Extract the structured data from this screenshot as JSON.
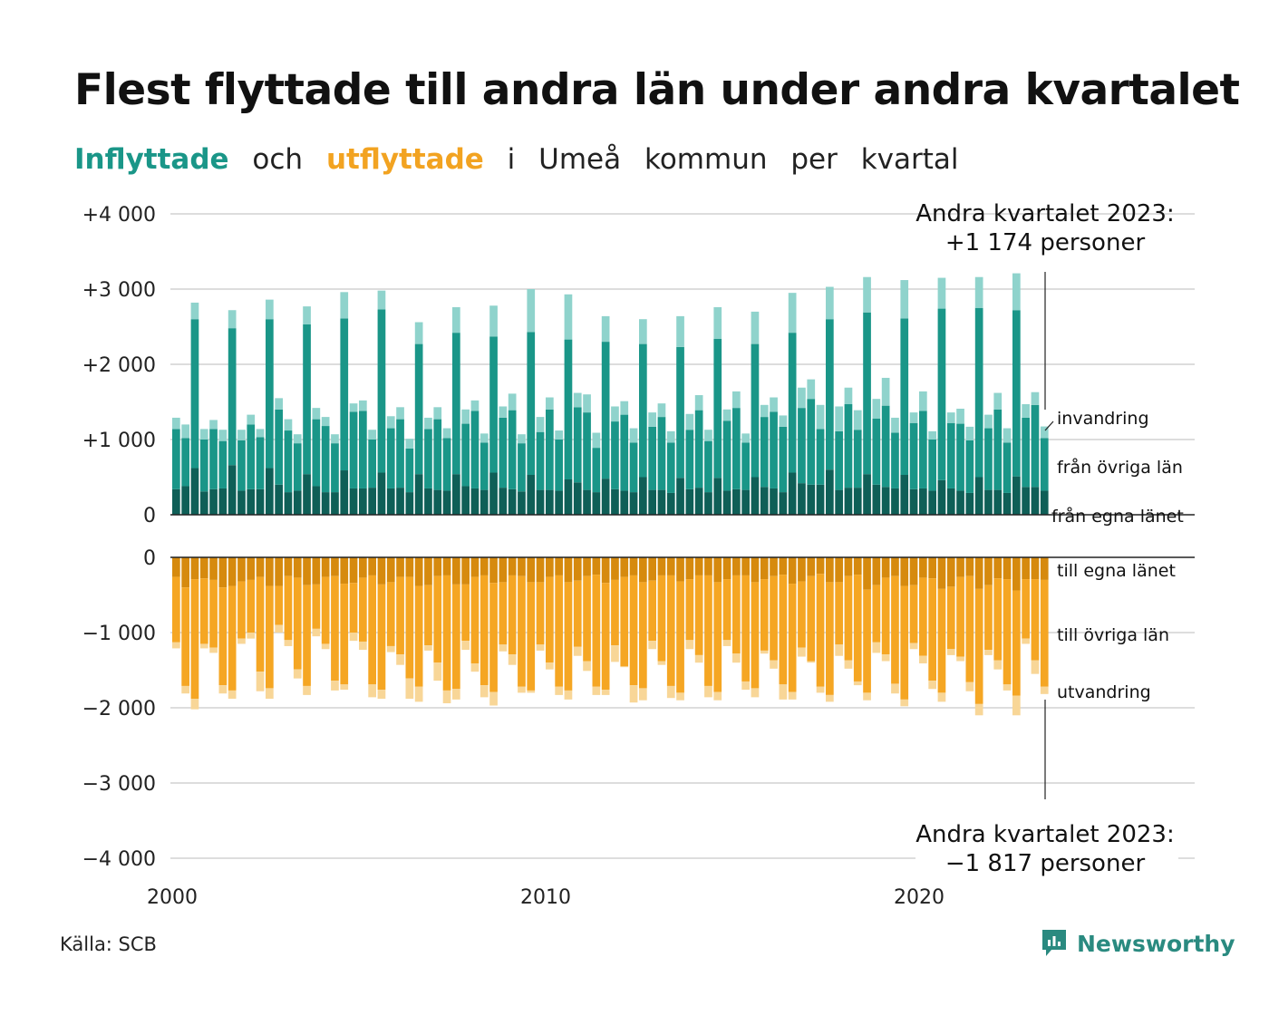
{
  "title": "Flest flyttade till andra län under andra kvartalet",
  "subtitle": {
    "part1": "Inflyttade",
    "part2": "och",
    "part3": "utflyttade",
    "part4": "i",
    "part5": "Umeå",
    "part6": "kommun",
    "part7": "per",
    "part8": "kvartal"
  },
  "source": "Källa: SCB",
  "brand": "Newsworthy",
  "colors": {
    "in_own": "#0f5f57",
    "in_other": "#1a9688",
    "in_immig": "#8fd3cc",
    "out_own": "#d68a0e",
    "out_other": "#f5a623",
    "out_emig": "#f8d697",
    "grid": "#dddddd",
    "text": "#222222"
  },
  "chart_data": {
    "type": "bar",
    "x_start": 2000,
    "x_end": 2023.5,
    "x_ticks": [
      "2000",
      "2010",
      "2020"
    ],
    "ylim_top": [
      0,
      4000
    ],
    "ylim_bottom": [
      -4000,
      0
    ],
    "y_ticks_top": [
      "+4 000",
      "+3 000",
      "+2 000",
      "+1 000",
      "0"
    ],
    "y_ticks_bottom": [
      "0",
      "−1 000",
      "−2 000",
      "−3 000",
      "−4 000"
    ],
    "stack_labels_in": [
      "invandring",
      "från övriga län",
      "från egna länet"
    ],
    "stack_labels_out": [
      "till egna länet",
      "till övriga län",
      "utvandring"
    ],
    "annotation_top": {
      "line1": "Andra kvartalet 2023:",
      "line2": "+1 174 personer"
    },
    "annotation_bottom": {
      "line1": "Andra kvartalet 2023:",
      "line2": "−1 817 personer"
    },
    "quarters": [
      "2000Q1",
      "2000Q2",
      "2000Q3",
      "2000Q4",
      "2001Q1",
      "2001Q2",
      "2001Q3",
      "2001Q4",
      "2002Q1",
      "2002Q2",
      "2002Q3",
      "2002Q4",
      "2003Q1",
      "2003Q2",
      "2003Q3",
      "2003Q4",
      "2004Q1",
      "2004Q2",
      "2004Q3",
      "2004Q4",
      "2005Q1",
      "2005Q2",
      "2005Q3",
      "2005Q4",
      "2006Q1",
      "2006Q2",
      "2006Q3",
      "2006Q4",
      "2007Q1",
      "2007Q2",
      "2007Q3",
      "2007Q4",
      "2008Q1",
      "2008Q2",
      "2008Q3",
      "2008Q4",
      "2009Q1",
      "2009Q2",
      "2009Q3",
      "2009Q4",
      "2010Q1",
      "2010Q2",
      "2010Q3",
      "2010Q4",
      "2011Q1",
      "2011Q2",
      "2011Q3",
      "2011Q4",
      "2012Q1",
      "2012Q2",
      "2012Q3",
      "2012Q4",
      "2013Q1",
      "2013Q2",
      "2013Q3",
      "2013Q4",
      "2014Q1",
      "2014Q2",
      "2014Q3",
      "2014Q4",
      "2015Q1",
      "2015Q2",
      "2015Q3",
      "2015Q4",
      "2016Q1",
      "2016Q2",
      "2016Q3",
      "2016Q4",
      "2017Q1",
      "2017Q2",
      "2017Q3",
      "2017Q4",
      "2018Q1",
      "2018Q2",
      "2018Q3",
      "2018Q4",
      "2019Q1",
      "2019Q2",
      "2019Q3",
      "2019Q4",
      "2020Q1",
      "2020Q2",
      "2020Q3",
      "2020Q4",
      "2021Q1",
      "2021Q2",
      "2021Q3",
      "2021Q4",
      "2022Q1",
      "2022Q2",
      "2022Q3",
      "2022Q4",
      "2023Q1",
      "2023Q2"
    ],
    "in_total": [
      1290,
      1200,
      2820,
      1140,
      1260,
      1130,
      2720,
      1130,
      1330,
      1140,
      2860,
      1550,
      1270,
      1070,
      2770,
      1420,
      1300,
      1070,
      2960,
      1480,
      1520,
      1130,
      2980,
      1310,
      1430,
      1010,
      2560,
      1290,
      1430,
      1150,
      2760,
      1400,
      1520,
      1080,
      2780,
      1440,
      1610,
      1070,
      3000,
      1300,
      1560,
      1120,
      2930,
      1620,
      1600,
      1090,
      2640,
      1440,
      1510,
      1150,
      2600,
      1360,
      1480,
      1110,
      2640,
      1340,
      1590,
      1130,
      2760,
      1400,
      1640,
      1080,
      2700,
      1460,
      1560,
      1320,
      2950,
      1690,
      1800,
      1460,
      3030,
      1440,
      1690,
      1390,
      3160,
      1540,
      1820,
      1290,
      3120,
      1360,
      1640,
      1110,
      3150,
      1360,
      1410,
      1170,
      3160,
      1330,
      1620,
      1150,
      3210,
      1470,
      1630,
      1174
    ],
    "in_other_top": [
      1140,
      1020,
      2600,
      1000,
      1140,
      980,
      2480,
      990,
      1200,
      1030,
      2600,
      1400,
      1120,
      950,
      2530,
      1270,
      1180,
      950,
      2610,
      1370,
      1380,
      1000,
      2730,
      1150,
      1270,
      880,
      2270,
      1140,
      1270,
      1020,
      2420,
      1210,
      1380,
      960,
      2370,
      1290,
      1390,
      950,
      2430,
      1100,
      1400,
      1000,
      2330,
      1430,
      1360,
      890,
      2300,
      1240,
      1330,
      960,
      2270,
      1170,
      1300,
      960,
      2230,
      1130,
      1390,
      980,
      2340,
      1250,
      1420,
      960,
      2270,
      1300,
      1370,
      1170,
      2420,
      1420,
      1540,
      1140,
      2600,
      1110,
      1470,
      1130,
      2690,
      1280,
      1450,
      1090,
      2610,
      1220,
      1380,
      1000,
      2740,
      1220,
      1210,
      990,
      2750,
      1150,
      1400,
      960,
      2720,
      1290,
      1460,
      1020
    ],
    "in_own": [
      340,
      380,
      620,
      310,
      340,
      350,
      660,
      320,
      340,
      340,
      620,
      400,
      300,
      320,
      540,
      380,
      300,
      300,
      590,
      350,
      350,
      360,
      560,
      350,
      360,
      300,
      540,
      350,
      330,
      320,
      540,
      380,
      350,
      330,
      560,
      360,
      340,
      310,
      530,
      330,
      330,
      320,
      470,
      430,
      330,
      300,
      480,
      340,
      320,
      300,
      500,
      330,
      330,
      290,
      490,
      340,
      360,
      300,
      490,
      320,
      340,
      330,
      500,
      370,
      350,
      300,
      560,
      420,
      400,
      400,
      600,
      330,
      360,
      360,
      540,
      400,
      370,
      350,
      530,
      340,
      350,
      320,
      460,
      350,
      320,
      290,
      500,
      330,
      330,
      290,
      510,
      370,
      370,
      320
    ],
    "out_own": [
      -260,
      -400,
      -290,
      -280,
      -300,
      -400,
      -380,
      -320,
      -300,
      -260,
      -380,
      -380,
      -250,
      -270,
      -370,
      -360,
      -260,
      -250,
      -350,
      -340,
      -270,
      -240,
      -360,
      -330,
      -260,
      -260,
      -380,
      -370,
      -250,
      -240,
      -360,
      -360,
      -260,
      -240,
      -340,
      -330,
      -240,
      -250,
      -330,
      -330,
      -260,
      -240,
      -330,
      -310,
      -250,
      -230,
      -340,
      -300,
      -260,
      -240,
      -330,
      -310,
      -240,
      -240,
      -320,
      -290,
      -240,
      -240,
      -330,
      -290,
      -240,
      -240,
      -330,
      -290,
      -250,
      -230,
      -350,
      -320,
      -250,
      -220,
      -330,
      -330,
      -250,
      -230,
      -430,
      -370,
      -270,
      -250,
      -380,
      -370,
      -270,
      -280,
      -420,
      -390,
      -260,
      -250,
      -420,
      -370,
      -280,
      -290,
      -440,
      -290,
      -290,
      -300
    ],
    "out_other_bottom": [
      -1130,
      -1710,
      -1880,
      -1150,
      -1200,
      -1700,
      -1770,
      -1080,
      -1000,
      -1520,
      -1740,
      -900,
      -1100,
      -1490,
      -1710,
      -950,
      -1150,
      -1640,
      -1690,
      -1000,
      -1120,
      -1690,
      -1760,
      -1180,
      -1290,
      -1610,
      -1720,
      -1170,
      -1400,
      -1770,
      -1750,
      -1110,
      -1410,
      -1700,
      -1790,
      -1160,
      -1290,
      -1720,
      -1770,
      -1160,
      -1400,
      -1720,
      -1770,
      -1190,
      -1380,
      -1720,
      -1760,
      -1170,
      -1450,
      -1700,
      -1740,
      -1110,
      -1380,
      -1710,
      -1800,
      -1100,
      -1300,
      -1710,
      -1790,
      -1100,
      -1280,
      -1650,
      -1740,
      -1240,
      -1370,
      -1690,
      -1790,
      -1200,
      -1380,
      -1720,
      -1830,
      -1160,
      -1370,
      -1650,
      -1800,
      -1130,
      -1290,
      -1680,
      -1890,
      -1140,
      -1310,
      -1640,
      -1800,
      -1220,
      -1320,
      -1660,
      -1950,
      -1230,
      -1370,
      -1690,
      -1840,
      -1080,
      -1370,
      -1720
    ],
    "out_total": [
      -1210,
      -1810,
      -2020,
      -1210,
      -1270,
      -1810,
      -1880,
      -1150,
      -1080,
      -1780,
      -1880,
      -1000,
      -1180,
      -1610,
      -1830,
      -1050,
      -1220,
      -1770,
      -1760,
      -1110,
      -1230,
      -1860,
      -1880,
      -1260,
      -1430,
      -1880,
      -1920,
      -1240,
      -1640,
      -1940,
      -1890,
      -1230,
      -1520,
      -1860,
      -1970,
      -1250,
      -1430,
      -1800,
      -1800,
      -1240,
      -1490,
      -1830,
      -1890,
      -1310,
      -1510,
      -1830,
      -1830,
      -1390,
      -1460,
      -1930,
      -1900,
      -1220,
      -1430,
      -1870,
      -1900,
      -1220,
      -1400,
      -1860,
      -1900,
      -1180,
      -1400,
      -1760,
      -1860,
      -1280,
      -1480,
      -1890,
      -1890,
      -1320,
      -1400,
      -1800,
      -1920,
      -1310,
      -1480,
      -1700,
      -1900,
      -1270,
      -1380,
      -1810,
      -1980,
      -1220,
      -1410,
      -1750,
      -1920,
      -1300,
      -1380,
      -1780,
      -2100,
      -1300,
      -1490,
      -1770,
      -2100,
      -1150,
      -1550,
      -1817
    ]
  }
}
